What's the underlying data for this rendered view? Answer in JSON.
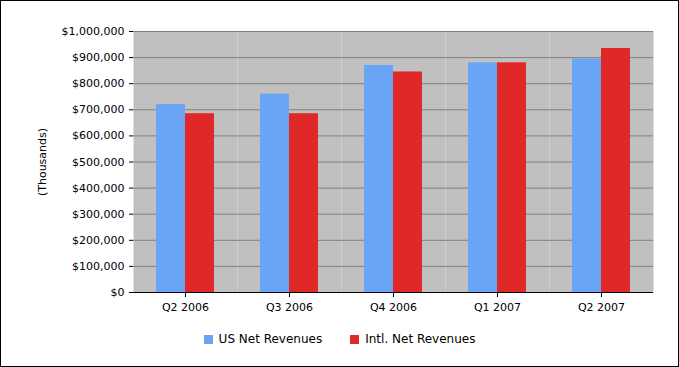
{
  "chart_data": {
    "type": "bar",
    "categories": [
      "Q2 2006",
      "Q3 2006",
      "Q4 2006",
      "Q1 2007",
      "Q2 2007"
    ],
    "series": [
      {
        "name": "US Net Revenues",
        "color": "#6aa5f5",
        "values": [
          720000,
          760000,
          870000,
          880000,
          895000
        ]
      },
      {
        "name": "Intl. Net Revenues",
        "color": "#e02828",
        "values": [
          685000,
          685000,
          845000,
          880000,
          935000
        ]
      }
    ],
    "y_label": "(Thousands)",
    "ylim": [
      0,
      1000000
    ],
    "yticks": [
      {
        "value": 0,
        "label": "$0"
      },
      {
        "value": 100000,
        "label": "$100,000"
      },
      {
        "value": 200000,
        "label": "$200,000"
      },
      {
        "value": 300000,
        "label": "$300,000"
      },
      {
        "value": 400000,
        "label": "$400,000"
      },
      {
        "value": 500000,
        "label": "$500,000"
      },
      {
        "value": 600000,
        "label": "$600,000"
      },
      {
        "value": 700000,
        "label": "$700,000"
      },
      {
        "value": 800000,
        "label": "$800,000"
      },
      {
        "value": 900000,
        "label": "$900,000"
      },
      {
        "value": 1000000,
        "label": "$1,000,000"
      }
    ],
    "grid": true,
    "legend": "bottom"
  }
}
